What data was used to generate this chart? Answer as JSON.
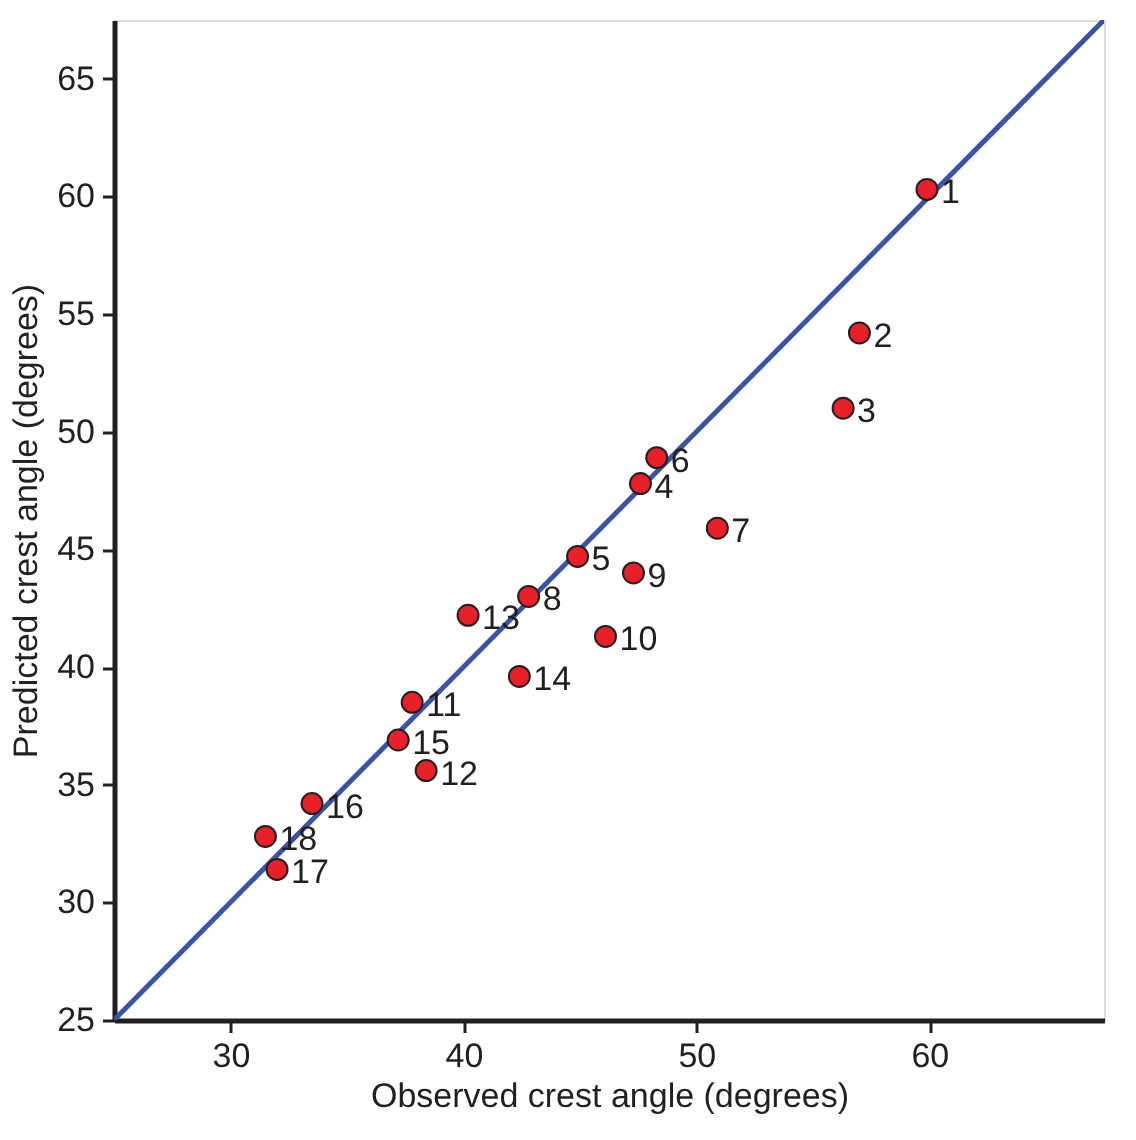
{
  "chart_data": {
    "type": "scatter",
    "xlabel": "Observed crest angle (degrees)",
    "ylabel": "Predicted crest angle (degrees)",
    "xlim": [
      25,
      67.5
    ],
    "ylim": [
      25,
      67.5
    ],
    "xticks": [
      30,
      40,
      50,
      60
    ],
    "yticks": [
      25,
      30,
      35,
      40,
      45,
      50,
      55,
      60,
      65
    ],
    "grid": false,
    "series": [
      {
        "type": "line",
        "marker": "none",
        "line_style": "solid",
        "color": "#3a54a4",
        "x": [
          25,
          67.5
        ],
        "values": [
          25,
          67.5
        ]
      },
      {
        "marker": "circle",
        "color": "#e8202a",
        "x": [
          59.9,
          57.0,
          56.3,
          47.6,
          44.9,
          48.3,
          50.9,
          42.8,
          47.3,
          46.1,
          37.8,
          38.4,
          40.2,
          42.4,
          37.2,
          33.5,
          32.0,
          31.5
        ],
        "values": [
          60.3,
          54.2,
          51.0,
          47.8,
          44.7,
          48.9,
          45.9,
          43.0,
          44.0,
          41.3,
          38.5,
          35.6,
          42.2,
          39.6,
          36.9,
          34.2,
          31.4,
          32.8
        ]
      }
    ],
    "annotations": [
      {
        "text": "1",
        "x": 59.9,
        "y": 60.3
      },
      {
        "text": "2",
        "x": 57.0,
        "y": 54.2
      },
      {
        "text": "3",
        "x": 56.3,
        "y": 51.0
      },
      {
        "text": "4",
        "x": 47.6,
        "y": 47.8
      },
      {
        "text": "5",
        "x": 44.9,
        "y": 44.7
      },
      {
        "text": "6",
        "x": 48.3,
        "y": 48.9
      },
      {
        "text": "7",
        "x": 50.9,
        "y": 45.9
      },
      {
        "text": "8",
        "x": 42.8,
        "y": 43.0
      },
      {
        "text": "9",
        "x": 47.3,
        "y": 44.0
      },
      {
        "text": "10",
        "x": 46.1,
        "y": 41.3
      },
      {
        "text": "11",
        "x": 37.8,
        "y": 38.5
      },
      {
        "text": "12",
        "x": 38.4,
        "y": 35.6
      },
      {
        "text": "13",
        "x": 40.2,
        "y": 42.2
      },
      {
        "text": "14",
        "x": 42.4,
        "y": 39.6
      },
      {
        "text": "15",
        "x": 37.2,
        "y": 36.9
      },
      {
        "text": "16",
        "x": 33.5,
        "y": 34.2
      },
      {
        "text": "17",
        "x": 32.0,
        "y": 31.4
      },
      {
        "text": "18",
        "x": 31.5,
        "y": 32.8
      }
    ]
  }
}
